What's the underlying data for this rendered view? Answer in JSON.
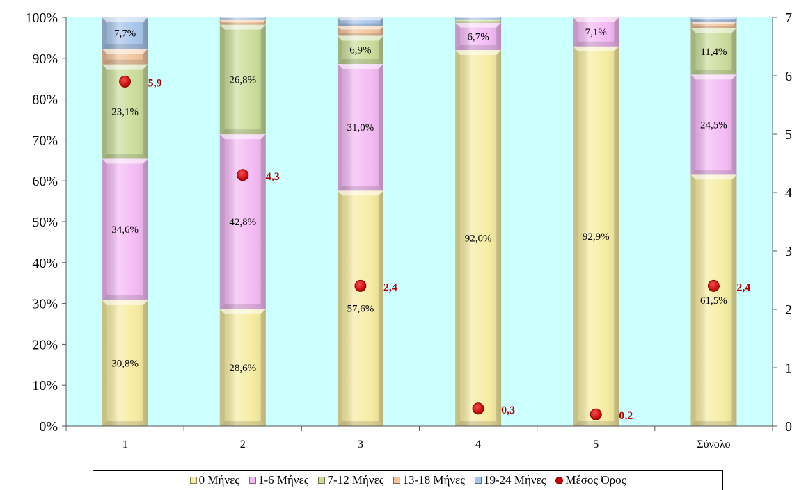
{
  "chart_data": {
    "type": "bar",
    "stacked": true,
    "categories": [
      "1",
      "2",
      "3",
      "4",
      "5",
      "Σύνολο"
    ],
    "y_axis": {
      "min": 0,
      "max": 100,
      "step": 10,
      "tick_labels": [
        "0%",
        "10%",
        "20%",
        "30%",
        "40%",
        "50%",
        "60%",
        "70%",
        "80%",
        "90%",
        "100%"
      ]
    },
    "y2_axis": {
      "min": 0,
      "max": 7,
      "step": 1,
      "tick_labels": [
        "0",
        "1",
        "2",
        "3",
        "4",
        "5",
        "6",
        "7"
      ]
    },
    "series": [
      {
        "name": "0 Μήνες",
        "color": "#f6ec9f",
        "values": [
          30.8,
          28.6,
          57.6,
          92.0,
          92.9,
          61.5
        ],
        "labels": [
          "30,8%",
          "28,6%",
          "57,6%",
          "92,0%",
          "92,9%",
          "61,5%"
        ]
      },
      {
        "name": "1-6 Μήνες",
        "color": "#f4b8f4",
        "values": [
          34.6,
          42.8,
          31.0,
          6.7,
          7.1,
          24.5
        ],
        "labels": [
          "34,6%",
          "42,8%",
          "31,0%",
          "6,7%",
          "7,1%",
          "24,5%"
        ]
      },
      {
        "name": "7-12 Μήνες",
        "color": "#c9dc98",
        "values": [
          23.1,
          26.8,
          6.9,
          0.7,
          0.0,
          11.4
        ],
        "labels": [
          "23,1%",
          "26,8%",
          "6,9%",
          "",
          "",
          "11,4%"
        ]
      },
      {
        "name": "13-18 Μήνες",
        "color": "#f3c39a",
        "values": [
          3.8,
          1.2,
          2.3,
          0.0,
          0.0,
          1.6
        ],
        "labels": [
          "",
          "",
          "",
          "",
          "",
          ""
        ]
      },
      {
        "name": "19-24 Μήνες",
        "color": "#a6c4ea",
        "values": [
          7.7,
          0.6,
          2.2,
          0.6,
          0.0,
          1.0
        ],
        "labels": [
          "7,7%",
          "",
          "",
          "",
          "",
          ""
        ]
      }
    ],
    "line_series": {
      "name": "Μέσος Όρος",
      "axis": "secondary",
      "color": "#d10000",
      "values": [
        5.9,
        4.3,
        2.4,
        0.3,
        0.2,
        2.4
      ],
      "labels": [
        "5,9",
        "4,3",
        "2,4",
        "0,3",
        "0,2",
        "2,4"
      ]
    },
    "plot_background": "#ccffff",
    "legend_position": "bottom"
  }
}
